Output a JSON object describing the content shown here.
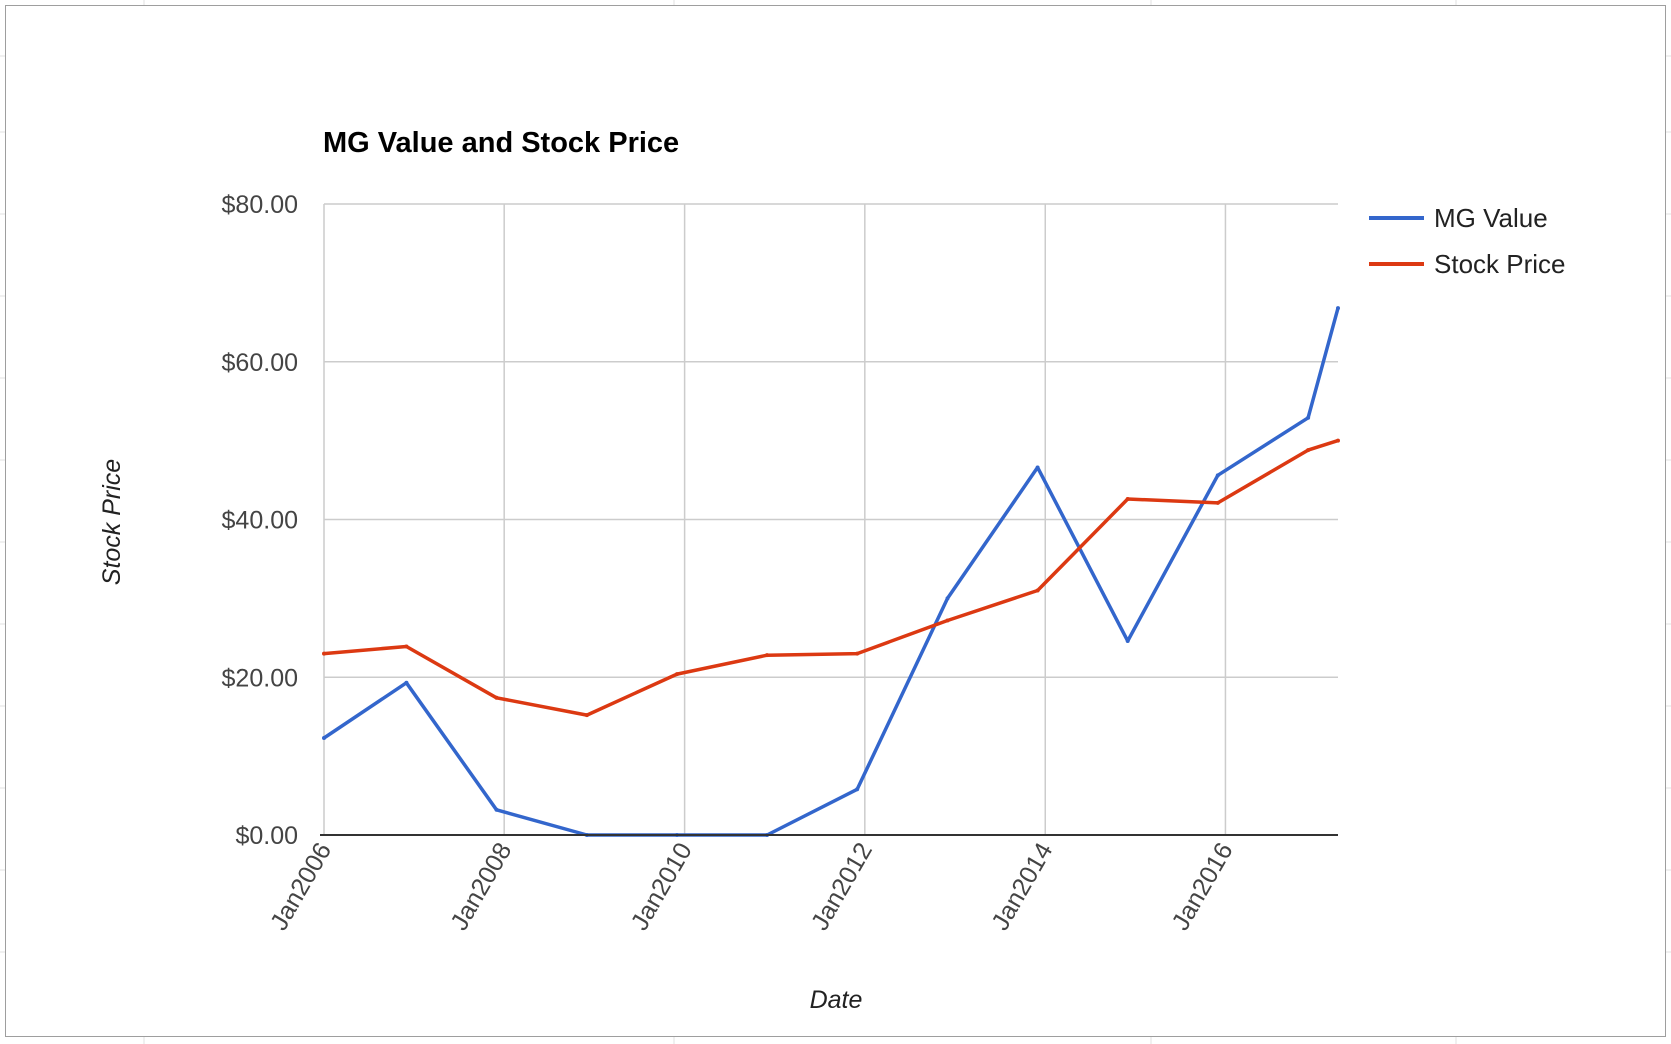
{
  "chart_data": {
    "type": "line",
    "title": "MG Value and Stock Price",
    "xlabel": "Date",
    "ylabel": "Stock Price",
    "x_ticks": [
      "Jan2006",
      "Jan2008",
      "Jan2010",
      "Jan2012",
      "Jan2014",
      "Jan2016"
    ],
    "y_ticks": [
      "$0.00",
      "$20.00",
      "$40.00",
      "$60.00",
      "$80.00"
    ],
    "ylim": [
      0,
      80
    ],
    "xlim": [
      "2006-01-01",
      "2017-04-01"
    ],
    "grid": true,
    "legend_position": "right",
    "series": [
      {
        "name": "MG Value",
        "color": "#3366cc",
        "points": [
          {
            "x": "2006-01-01",
            "y": 12.3
          },
          {
            "x": "2006-12-01",
            "y": 19.3
          },
          {
            "x": "2007-12-01",
            "y": 3.2
          },
          {
            "x": "2008-12-01",
            "y": 0.0
          },
          {
            "x": "2009-12-01",
            "y": 0.0
          },
          {
            "x": "2010-12-01",
            "y": 0.0
          },
          {
            "x": "2011-12-01",
            "y": 5.8
          },
          {
            "x": "2012-12-01",
            "y": 30.0
          },
          {
            "x": "2013-12-01",
            "y": 46.6
          },
          {
            "x": "2014-12-01",
            "y": 24.6
          },
          {
            "x": "2015-12-01",
            "y": 45.6
          },
          {
            "x": "2016-12-01",
            "y": 52.9
          },
          {
            "x": "2017-04-01",
            "y": 66.8
          }
        ]
      },
      {
        "name": "Stock Price",
        "color": "#dc3912",
        "points": [
          {
            "x": "2006-01-01",
            "y": 23.0
          },
          {
            "x": "2006-12-01",
            "y": 23.9
          },
          {
            "x": "2007-12-01",
            "y": 17.4
          },
          {
            "x": "2008-12-01",
            "y": 15.2
          },
          {
            "x": "2009-12-01",
            "y": 20.4
          },
          {
            "x": "2010-12-01",
            "y": 22.8
          },
          {
            "x": "2011-12-01",
            "y": 23.0
          },
          {
            "x": "2012-12-01",
            "y": 27.2
          },
          {
            "x": "2013-12-01",
            "y": 31.0
          },
          {
            "x": "2014-12-01",
            "y": 42.6
          },
          {
            "x": "2015-12-01",
            "y": 42.1
          },
          {
            "x": "2016-12-01",
            "y": 48.8
          },
          {
            "x": "2017-04-01",
            "y": 50.0
          }
        ]
      }
    ]
  }
}
